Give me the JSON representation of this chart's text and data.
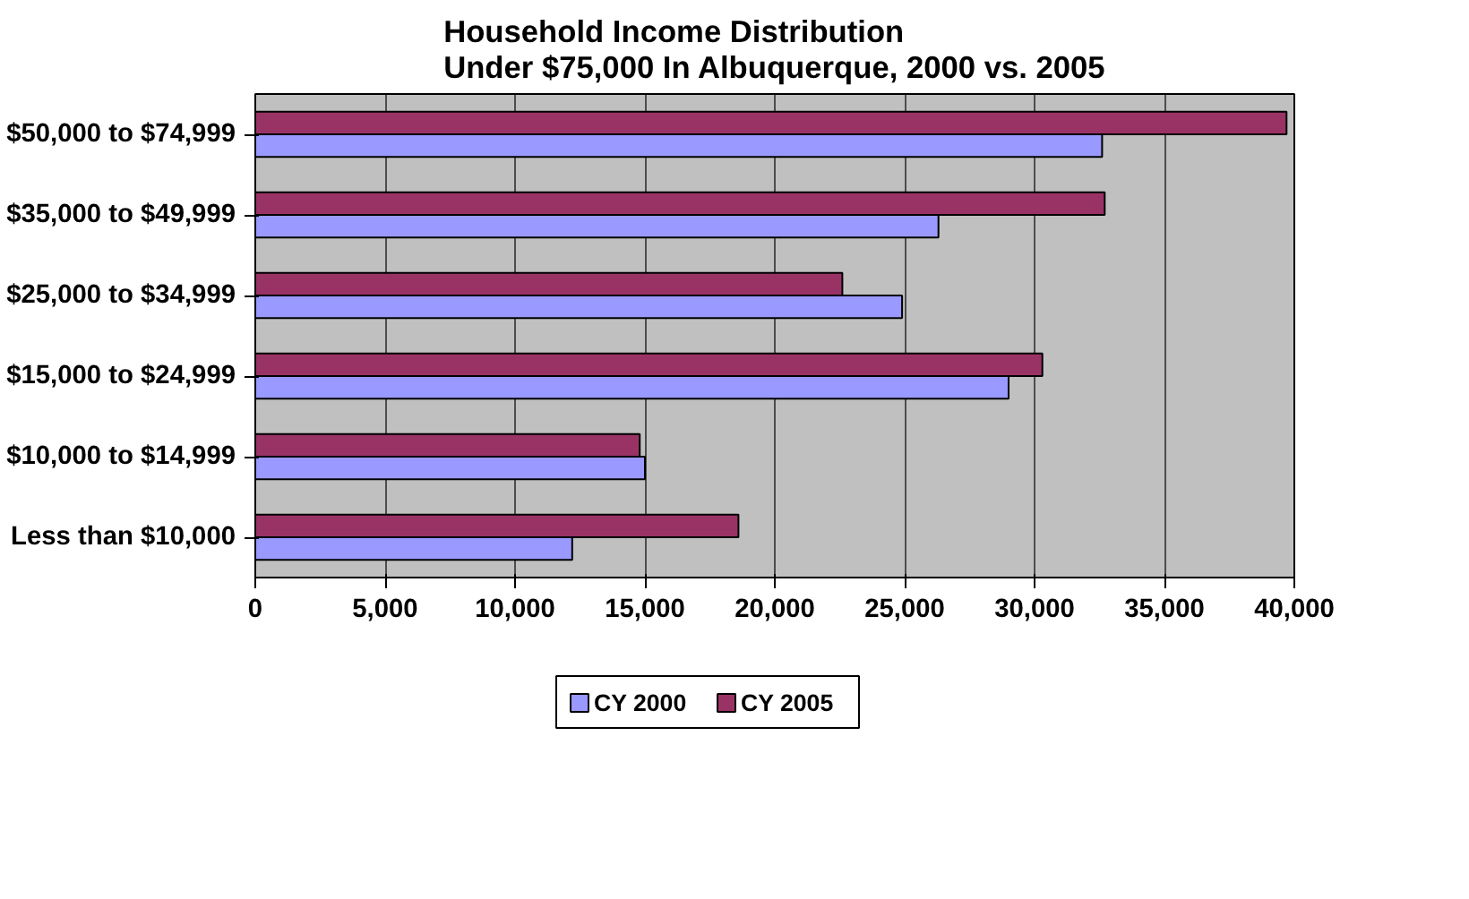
{
  "chart_data": {
    "type": "bar",
    "orientation": "horizontal",
    "title": "Household Income Distribution\nUnder $75,000 In Albuquerque, 2000 vs. 2005",
    "categories": [
      "$50,000 to $74,999",
      "$35,000 to $49,999",
      "$25,000 to $34,999",
      "$15,000 to $24,999",
      "$10,000 to $14,999",
      "Less than $10,000"
    ],
    "series": [
      {
        "name": "CY 2000",
        "color": "#9999ff",
        "values": [
          32600,
          26300,
          24900,
          29000,
          15000,
          12200
        ]
      },
      {
        "name": "CY 2005",
        "color": "#993366",
        "values": [
          39700,
          32700,
          22600,
          30300,
          14800,
          18600
        ]
      }
    ],
    "xlim": [
      0,
      40000
    ],
    "xticks": [
      {
        "value": 0,
        "label": "0"
      },
      {
        "value": 5000,
        "label": "5,000"
      },
      {
        "value": 10000,
        "label": "10,000"
      },
      {
        "value": 15000,
        "label": "15,000"
      },
      {
        "value": 20000,
        "label": "20,000"
      },
      {
        "value": 25000,
        "label": "25,000"
      },
      {
        "value": 30000,
        "label": "30,000"
      },
      {
        "value": 35000,
        "label": "35,000"
      },
      {
        "value": 40000,
        "label": "40,000"
      }
    ],
    "grid": "x",
    "legend": "bottom"
  }
}
